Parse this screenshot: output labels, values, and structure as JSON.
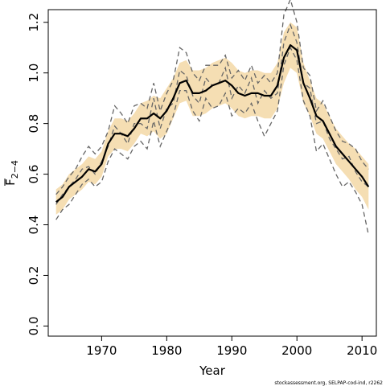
{
  "chart_data": {
    "type": "line",
    "title": "",
    "xlabel": "Year",
    "ylabel_main": "F",
    "ylabel_sub": "2−4",
    "xlim": [
      1961.8,
      2012.2
    ],
    "ylim": [
      -0.04,
      1.25
    ],
    "x_ticks": [
      1970,
      1980,
      1990,
      2000,
      2010
    ],
    "x_tick_labels": [
      "1970",
      "1980",
      "1990",
      "2000",
      "2010"
    ],
    "y_ticks": [
      0.0,
      0.2,
      0.4,
      0.6,
      0.8,
      1.0,
      1.2
    ],
    "y_tick_labels": [
      "0.0",
      "0.2",
      "0.4",
      "0.6",
      "0.8",
      "1.0",
      "1.2"
    ],
    "grid": false,
    "x": [
      1963,
      1964,
      1965,
      1966,
      1967,
      1968,
      1969,
      1970,
      1971,
      1972,
      1973,
      1974,
      1975,
      1976,
      1977,
      1978,
      1979,
      1980,
      1981,
      1982,
      1983,
      1984,
      1985,
      1986,
      1987,
      1988,
      1989,
      1990,
      1991,
      1992,
      1993,
      1994,
      1995,
      1996,
      1997,
      1998,
      1999,
      2000,
      2001,
      2002,
      2003,
      2004,
      2005,
      2006,
      2007,
      2008,
      2009,
      2010,
      2011
    ],
    "series": [
      {
        "role": "estimate",
        "color": "#000000",
        "values": [
          0.49,
          0.51,
          0.55,
          0.57,
          0.59,
          0.62,
          0.61,
          0.64,
          0.72,
          0.76,
          0.76,
          0.75,
          0.78,
          0.82,
          0.82,
          0.84,
          0.82,
          0.85,
          0.9,
          0.96,
          0.97,
          0.92,
          0.92,
          0.93,
          0.95,
          0.96,
          0.97,
          0.95,
          0.92,
          0.91,
          0.92,
          0.92,
          0.91,
          0.91,
          0.95,
          1.06,
          1.11,
          1.09,
          0.96,
          0.9,
          0.83,
          0.81,
          0.76,
          0.71,
          0.68,
          0.65,
          0.62,
          0.59,
          0.55
        ]
      },
      {
        "role": "upper",
        "color": "#f5deb3",
        "values": [
          0.54,
          0.56,
          0.6,
          0.62,
          0.64,
          0.67,
          0.66,
          0.69,
          0.77,
          0.82,
          0.82,
          0.81,
          0.84,
          0.88,
          0.89,
          0.91,
          0.9,
          0.94,
          0.98,
          1.04,
          1.05,
          1.01,
          1.01,
          1.02,
          1.04,
          1.05,
          1.06,
          1.04,
          1.01,
          1.0,
          1.01,
          1.01,
          1.0,
          1.0,
          1.04,
          1.16,
          1.2,
          1.18,
          1.04,
          0.97,
          0.9,
          0.88,
          0.83,
          0.78,
          0.75,
          0.72,
          0.7,
          0.67,
          0.64
        ]
      },
      {
        "role": "lower",
        "color": "#f5deb3",
        "values": [
          0.44,
          0.46,
          0.5,
          0.52,
          0.54,
          0.57,
          0.56,
          0.59,
          0.67,
          0.7,
          0.7,
          0.69,
          0.72,
          0.76,
          0.75,
          0.77,
          0.74,
          0.76,
          0.82,
          0.88,
          0.89,
          0.83,
          0.83,
          0.84,
          0.86,
          0.87,
          0.88,
          0.86,
          0.83,
          0.82,
          0.83,
          0.83,
          0.82,
          0.82,
          0.86,
          0.96,
          1.02,
          1.0,
          0.88,
          0.83,
          0.76,
          0.74,
          0.69,
          0.64,
          0.61,
          0.58,
          0.54,
          0.51,
          0.46
        ]
      },
      {
        "role": "retro",
        "color": "#666666",
        "values": [
          0.48,
          0.52,
          0.55,
          0.58,
          0.62,
          0.63,
          0.6,
          0.65,
          0.71,
          0.79,
          0.76,
          0.72,
          0.8,
          0.8,
          0.78,
          0.9,
          0.78,
          0.86,
          0.88,
          1.01,
          0.99,
          0.91,
          0.88,
          0.98,
          0.95,
          0.96,
          1.02,
          0.9,
          0.95,
          0.92,
          0.98,
          0.88,
          0.93,
          0.9,
          0.92,
          1.12,
          1.19,
          1.12,
          0.96,
          0.94,
          0.8,
          0.81,
          0.74,
          0.7,
          0.66,
          0.67,
          0.61,
          0.57,
          0.55
        ]
      },
      {
        "role": "retro",
        "color": "#666666",
        "values": [
          0.42,
          0.46,
          0.48,
          0.52,
          0.56,
          0.58,
          0.55,
          0.57,
          0.65,
          0.7,
          0.68,
          0.66,
          0.71,
          0.73,
          0.7,
          0.81,
          0.71,
          0.77,
          0.83,
          0.93,
          0.93,
          0.85,
          0.81,
          0.9,
          0.86,
          0.87,
          0.92,
          0.83,
          0.86,
          0.84,
          0.88,
          0.81,
          0.75,
          0.8,
          0.85,
          1.03,
          1.1,
          1.05,
          0.89,
          0.83,
          0.69,
          0.72,
          0.66,
          0.6,
          0.55,
          0.57,
          0.53,
          0.48,
          0.36
        ]
      },
      {
        "role": "retro",
        "color": "#666666",
        "values": [
          0.52,
          0.55,
          0.59,
          0.62,
          0.67,
          0.71,
          0.68,
          0.71,
          0.77,
          0.87,
          0.84,
          0.8,
          0.87,
          0.88,
          0.86,
          0.96,
          0.85,
          0.92,
          0.97,
          1.1,
          1.08,
          1.0,
          0.97,
          1.03,
          1.03,
          1.03,
          1.07,
          0.98,
          1.01,
          0.97,
          1.03,
          0.96,
          0.99,
          0.96,
          1.0,
          1.23,
          1.29,
          1.2,
          1.02,
          0.99,
          0.85,
          0.89,
          0.83,
          0.77,
          0.73,
          0.72,
          0.7,
          0.65,
          0.62
        ]
      }
    ],
    "credit": "stockassessment.org, SELPAP-cod-ind, r2262"
  }
}
